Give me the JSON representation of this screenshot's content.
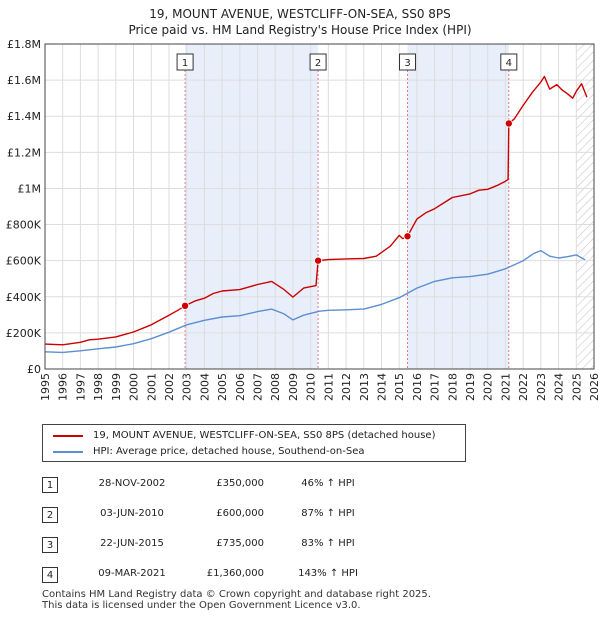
{
  "chart_data": {
    "type": "line",
    "title": "19, MOUNT AVENUE, WESTCLIFF-ON-SEA, SS0 8PS",
    "subtitle": "Price paid vs. HM Land Registry's House Price Index (HPI)",
    "xlabel": "",
    "ylabel": "",
    "xlim": [
      1995,
      2026
    ],
    "ylim": [
      0,
      1800000
    ],
    "x_ticks": [
      "1995",
      "1996",
      "1997",
      "1998",
      "1999",
      "2000",
      "2001",
      "2002",
      "2003",
      "2004",
      "2005",
      "2006",
      "2007",
      "2008",
      "2009",
      "2010",
      "2011",
      "2012",
      "2013",
      "2014",
      "2015",
      "2016",
      "2017",
      "2018",
      "2019",
      "2020",
      "2021",
      "2022",
      "2023",
      "2024",
      "2025",
      "2026"
    ],
    "y_ticks": [
      {
        "value": 0,
        "label": "£0"
      },
      {
        "value": 200000,
        "label": "£200K"
      },
      {
        "value": 400000,
        "label": "£400K"
      },
      {
        "value": 600000,
        "label": "£600K"
      },
      {
        "value": 800000,
        "label": "£800K"
      },
      {
        "value": 1000000,
        "label": "£1M"
      },
      {
        "value": 1200000,
        "label": "£1.2M"
      },
      {
        "value": 1400000,
        "label": "£1.4M"
      },
      {
        "value": 1600000,
        "label": "£1.6M"
      },
      {
        "value": 1800000,
        "label": "£1.8M"
      }
    ],
    "series": [
      {
        "name": "19, MOUNT AVENUE, WESTCLIFF-ON-SEA, SS0 8PS (detached house)",
        "color": "#cc0000",
        "points": [
          [
            1995.0,
            138000
          ],
          [
            1996.0,
            134000
          ],
          [
            1997.0,
            148000
          ],
          [
            1997.5,
            162000
          ],
          [
            1998.0,
            165000
          ],
          [
            1999.0,
            178000
          ],
          [
            2000.0,
            205000
          ],
          [
            2001.0,
            245000
          ],
          [
            2002.0,
            298000
          ],
          [
            2002.5,
            325000
          ],
          [
            2002.91,
            350000
          ],
          [
            2003.5,
            378000
          ],
          [
            2004.0,
            392000
          ],
          [
            2004.5,
            418000
          ],
          [
            2005.0,
            432000
          ],
          [
            2006.0,
            440000
          ],
          [
            2007.0,
            468000
          ],
          [
            2007.8,
            485000
          ],
          [
            2008.5,
            440000
          ],
          [
            2009.0,
            398000
          ],
          [
            2009.6,
            448000
          ],
          [
            2010.3,
            462000
          ],
          [
            2010.42,
            600000
          ],
          [
            2011.0,
            606000
          ],
          [
            2012.0,
            610000
          ],
          [
            2013.0,
            612000
          ],
          [
            2013.7,
            625000
          ],
          [
            2014.5,
            680000
          ],
          [
            2015.0,
            740000
          ],
          [
            2015.2,
            722000
          ],
          [
            2015.47,
            735000
          ],
          [
            2016.0,
            830000
          ],
          [
            2016.5,
            865000
          ],
          [
            2017.0,
            888000
          ],
          [
            2017.6,
            925000
          ],
          [
            2018.0,
            950000
          ],
          [
            2019.0,
            970000
          ],
          [
            2019.5,
            990000
          ],
          [
            2020.0,
            995000
          ],
          [
            2020.5,
            1015000
          ],
          [
            2021.0,
            1040000
          ],
          [
            2021.15,
            1050000
          ],
          [
            2021.19,
            1360000
          ],
          [
            2021.5,
            1385000
          ],
          [
            2022.0,
            1460000
          ],
          [
            2022.5,
            1530000
          ],
          [
            2023.0,
            1590000
          ],
          [
            2023.2,
            1620000
          ],
          [
            2023.5,
            1550000
          ],
          [
            2023.9,
            1575000
          ],
          [
            2024.2,
            1545000
          ],
          [
            2024.5,
            1525000
          ],
          [
            2024.8,
            1500000
          ],
          [
            2025.0,
            1538000
          ],
          [
            2025.3,
            1580000
          ],
          [
            2025.6,
            1505000
          ]
        ],
        "sales": [
          {
            "num": "1",
            "x": 2002.91,
            "value": 350000
          },
          {
            "num": "2",
            "x": 2010.42,
            "value": 600000
          },
          {
            "num": "3",
            "x": 2015.47,
            "value": 735000
          },
          {
            "num": "4",
            "x": 2021.19,
            "value": 1360000
          }
        ]
      },
      {
        "name": "HPI: Average price, detached house, Southend-on-Sea",
        "color": "#5b8fd0",
        "points": [
          [
            1995.0,
            95000
          ],
          [
            1996.0,
            92000
          ],
          [
            1997.0,
            101000
          ],
          [
            1998.0,
            112000
          ],
          [
            1999.0,
            122000
          ],
          [
            2000.0,
            140000
          ],
          [
            2001.0,
            168000
          ],
          [
            2002.0,
            204000
          ],
          [
            2003.0,
            245000
          ],
          [
            2004.0,
            270000
          ],
          [
            2005.0,
            288000
          ],
          [
            2006.0,
            295000
          ],
          [
            2007.0,
            318000
          ],
          [
            2007.8,
            332000
          ],
          [
            2008.5,
            305000
          ],
          [
            2009.0,
            272000
          ],
          [
            2009.6,
            298000
          ],
          [
            2010.5,
            320000
          ],
          [
            2011.0,
            325000
          ],
          [
            2012.0,
            328000
          ],
          [
            2013.0,
            332000
          ],
          [
            2014.0,
            358000
          ],
          [
            2015.0,
            395000
          ],
          [
            2016.0,
            448000
          ],
          [
            2017.0,
            485000
          ],
          [
            2018.0,
            505000
          ],
          [
            2019.0,
            512000
          ],
          [
            2020.0,
            525000
          ],
          [
            2021.0,
            555000
          ],
          [
            2022.0,
            600000
          ],
          [
            2022.6,
            640000
          ],
          [
            2023.0,
            655000
          ],
          [
            2023.5,
            625000
          ],
          [
            2024.0,
            615000
          ],
          [
            2024.5,
            622000
          ],
          [
            2025.0,
            632000
          ],
          [
            2025.5,
            605000
          ]
        ]
      }
    ],
    "marker_lines": [
      {
        "num": "1",
        "x": 2002.91
      },
      {
        "num": "2",
        "x": 2010.42
      },
      {
        "num": "3",
        "x": 2015.47
      },
      {
        "num": "4",
        "x": 2021.19
      }
    ],
    "shaded_bands": [
      [
        2002.91,
        2010.42
      ],
      [
        2015.47,
        2021.19
      ]
    ],
    "hatched_from": 2025.0,
    "grid": true,
    "legend_position": "bottom-left"
  },
  "legend": [
    {
      "label": "19, MOUNT AVENUE, WESTCLIFF-ON-SEA, SS0 8PS (detached house)",
      "color": "#cc0000"
    },
    {
      "label": "HPI: Average price, detached house, Southend-on-Sea",
      "color": "#5b8fd0"
    }
  ],
  "sales_table": [
    {
      "num": "1",
      "date": "28-NOV-2002",
      "price": "£350,000",
      "hpi": "46% ↑ HPI"
    },
    {
      "num": "2",
      "date": "03-JUN-2010",
      "price": "£600,000",
      "hpi": "87% ↑ HPI"
    },
    {
      "num": "3",
      "date": "22-JUN-2015",
      "price": "£735,000",
      "hpi": "83% ↑ HPI"
    },
    {
      "num": "4",
      "date": "09-MAR-2021",
      "price": "£1,360,000",
      "hpi": "143% ↑ HPI"
    }
  ],
  "footer": {
    "line1": "Contains HM Land Registry data © Crown copyright and database right 2025.",
    "line2": "This data is licensed under the Open Government Licence v3.0."
  }
}
